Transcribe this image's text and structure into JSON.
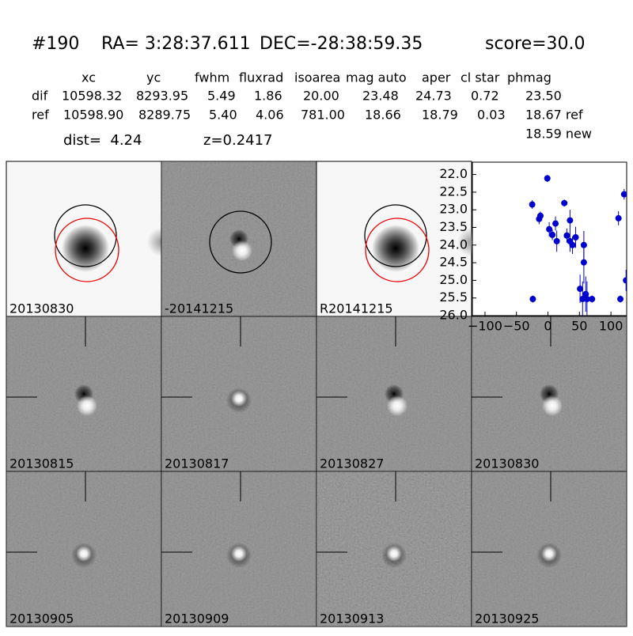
{
  "header": {
    "id": "#190",
    "ra": "RA= 3:28:37.611",
    "dec": "DEC=-28:38:59.35",
    "score": "score=30.0"
  },
  "table": {
    "columns": [
      "xc",
      "yc",
      "fwhm",
      "fluxrad",
      "isoarea",
      "mag auto",
      "aper",
      "cl star",
      "phmag"
    ],
    "rows": [
      [
        "dif",
        "10598.32",
        "8293.95",
        "5.49",
        "1.86",
        "20.00",
        "23.48",
        "24.73",
        "0.72",
        "23.50"
      ],
      [
        "ref",
        "10598.90",
        "8289.75",
        "5.40",
        "4.06",
        "781.00",
        "18.66",
        "18.79",
        "0.03",
        "18.67 ref"
      ]
    ],
    "extra": "18.59 new",
    "dist": "dist=  4.24",
    "z": "z=0.2417"
  },
  "stamps": [
    {
      "label": "20130830"
    },
    {
      "label": "-20141215"
    },
    {
      "label": "R20141215"
    },
    {
      "label": "20130815"
    },
    {
      "label": "20130817"
    },
    {
      "label": "20130827"
    },
    {
      "label": "20130830",
      "color": "#ff0000"
    },
    {
      "label": "20130905"
    },
    {
      "label": "20130909"
    },
    {
      "label": "20130913"
    },
    {
      "label": "20130925"
    }
  ],
  "chart_data": {
    "type": "scatter",
    "xlim": [
      -120,
      125
    ],
    "ylim": [
      26.0,
      21.65
    ],
    "xticks": [
      {
        "value": -100,
        "label": "−100"
      },
      {
        "value": -50,
        "label": "−50"
      },
      0,
      50,
      100
    ],
    "yticks": [
      {
        "value": 22.0,
        "label": "22.0"
      },
      {
        "value": 22.5,
        "label": "22.5"
      },
      {
        "value": 23.0,
        "label": "23.0"
      },
      {
        "value": 23.5,
        "label": "23.5"
      },
      {
        "value": 24.0,
        "label": "24.0"
      },
      {
        "value": 24.5,
        "label": "24.5"
      },
      {
        "value": 25.0,
        "label": "25.0"
      },
      {
        "value": 25.5,
        "label": "25.5"
      },
      {
        "value": 26.0,
        "label": "26.0"
      }
    ],
    "series": [
      {
        "color": "#0000cc",
        "x": [
          -25,
          -24,
          -14,
          -12,
          -1,
          2,
          7,
          12,
          14,
          26,
          30,
          35,
          35,
          39,
          44,
          51,
          55,
          57,
          57,
          60,
          62,
          70,
          112,
          115,
          121,
          124
        ],
        "values": [
          22.85,
          25.53,
          23.26,
          23.17,
          22.11,
          23.55,
          23.71,
          23.39,
          23.89,
          22.81,
          23.73,
          23.3,
          23.89,
          24.0,
          23.78,
          25.24,
          25.53,
          24.49,
          24.0,
          25.39,
          25.53,
          25.53,
          23.24,
          25.53,
          22.56,
          25.0
        ],
        "errors": [
          0.12,
          0.1,
          0.15,
          0.12,
          0.1,
          0.2,
          0.15,
          0.2,
          0.3,
          0.1,
          0.2,
          0.3,
          0.3,
          0.25,
          0.3,
          0.4,
          0.5,
          0.6,
          0.4,
          0.5,
          0.5,
          0.1,
          0.2,
          0.1,
          0.15,
          0.3
        ]
      }
    ]
  }
}
